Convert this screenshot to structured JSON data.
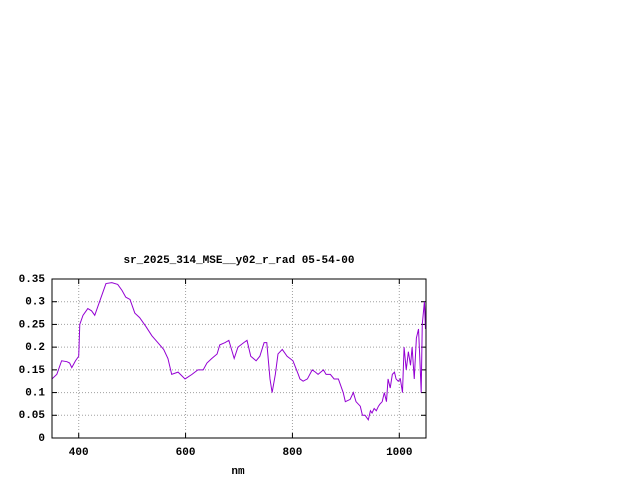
{
  "chart_data": {
    "type": "line",
    "title": "sr_2025_314_MSE__y02_r_rad 05-54-00",
    "x_label": "nm",
    "xlim": [
      350,
      1050
    ],
    "ylim": [
      0,
      0.35
    ],
    "xticks": [
      400,
      600,
      800,
      1000
    ],
    "yticks": [
      0,
      0.05,
      0.1,
      0.15,
      0.2,
      0.25,
      0.3,
      0.35
    ],
    "grid": true,
    "series": [
      {
        "color": "#9400d3",
        "x": [
          350,
          359,
          368,
          378,
          383,
          387,
          394,
          400,
          402,
          408,
          417,
          424,
          430,
          439,
          451,
          462,
          473,
          481,
          488,
          496,
          505,
          514,
          526,
          537,
          548,
          559,
          567,
          574,
          586,
          599,
          612,
          623,
          633,
          640,
          649,
          659,
          664,
          674,
          681,
          691,
          698,
          709,
          715,
          722,
          732,
          739,
          747,
          752,
          758,
          762,
          768,
          773,
          781,
          790,
          801,
          811,
          814,
          820,
          828,
          837,
          843,
          848,
          858,
          863,
          871,
          878,
          886,
          895,
          899,
          908,
          914,
          919,
          927,
          931,
          936,
          942,
          946,
          949,
          953,
          957,
          961,
          964,
          968,
          972,
          976,
          979,
          983,
          987,
          991,
          994,
          998,
          1002,
          1006,
          1009,
          1013,
          1017,
          1021,
          1024,
          1028,
          1032,
          1036,
          1039,
          1041,
          1043,
          1047,
          1049,
          1050
        ],
        "values": [
          0.13,
          0.14,
          0.17,
          0.168,
          0.165,
          0.155,
          0.17,
          0.18,
          0.25,
          0.27,
          0.285,
          0.28,
          0.27,
          0.3,
          0.34,
          0.342,
          0.338,
          0.325,
          0.31,
          0.305,
          0.275,
          0.265,
          0.245,
          0.225,
          0.21,
          0.195,
          0.175,
          0.14,
          0.145,
          0.13,
          0.14,
          0.15,
          0.15,
          0.165,
          0.175,
          0.185,
          0.205,
          0.21,
          0.215,
          0.175,
          0.2,
          0.21,
          0.215,
          0.18,
          0.17,
          0.18,
          0.21,
          0.21,
          0.13,
          0.1,
          0.14,
          0.185,
          0.195,
          0.18,
          0.17,
          0.14,
          0.13,
          0.125,
          0.13,
          0.15,
          0.145,
          0.14,
          0.15,
          0.14,
          0.14,
          0.13,
          0.13,
          0.1,
          0.08,
          0.085,
          0.1,
          0.08,
          0.07,
          0.05,
          0.05,
          0.04,
          0.06,
          0.055,
          0.065,
          0.06,
          0.07,
          0.075,
          0.08,
          0.1,
          0.08,
          0.13,
          0.11,
          0.14,
          0.145,
          0.13,
          0.125,
          0.13,
          0.1,
          0.2,
          0.15,
          0.19,
          0.16,
          0.2,
          0.13,
          0.22,
          0.24,
          0.16,
          0.1,
          0.25,
          0.3,
          0.24,
          0.3
        ]
      }
    ]
  }
}
